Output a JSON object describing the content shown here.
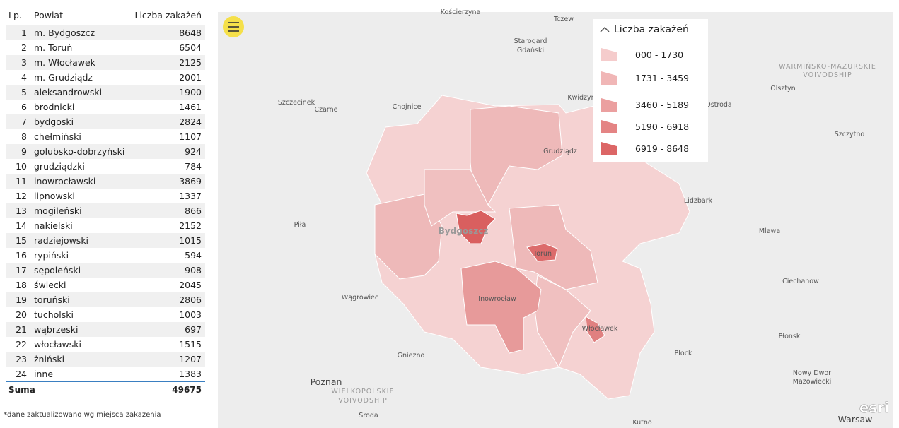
{
  "table": {
    "headers": [
      "Lp.",
      "Powiat",
      "Liczba zakażeń"
    ],
    "rows": [
      [
        1,
        "m. Bydgoszcz",
        8648
      ],
      [
        2,
        "m. Toruń",
        6504
      ],
      [
        3,
        "m. Włocławek",
        2125
      ],
      [
        4,
        "m. Grudziądz",
        2001
      ],
      [
        5,
        "aleksandrowski",
        1900
      ],
      [
        6,
        "brodnicki",
        1461
      ],
      [
        7,
        "bydgoski",
        2824
      ],
      [
        8,
        "chełmiński",
        1107
      ],
      [
        9,
        "golubsko-dobrzyński",
        924
      ],
      [
        10,
        "grudziądzki",
        784
      ],
      [
        11,
        "inowrocławski",
        3869
      ],
      [
        12,
        "lipnowski",
        1337
      ],
      [
        13,
        "mogileński",
        866
      ],
      [
        14,
        "nakielski",
        2152
      ],
      [
        15,
        "radziejowski",
        1015
      ],
      [
        16,
        "rypiński",
        594
      ],
      [
        17,
        "sępoleński",
        908
      ],
      [
        18,
        "świecki",
        2045
      ],
      [
        19,
        "toruński",
        2806
      ],
      [
        20,
        "tucholski",
        1003
      ],
      [
        21,
        "wąbrzeski",
        697
      ],
      [
        22,
        "włocławski",
        1515
      ],
      [
        23,
        "żniński",
        1207
      ],
      [
        24,
        "inne",
        1383
      ]
    ],
    "footer": {
      "label": "Suma",
      "value": 49675
    }
  },
  "note": "*dane zaktualizowano wg miejsca zakażenia",
  "legend": {
    "title": "Liczba zakażeń",
    "items": [
      "000 - 1730",
      "1731 - 3459",
      "3460 - 5189",
      "5190 - 6918",
      "6919 - 8648"
    ]
  },
  "map": {
    "places": [
      "Kościerzyna",
      "Tczew",
      "Starogard",
      "Gdański",
      "WARMIŃSKO-MAZURSKIE",
      "VOIVODSHIP",
      "Olsztyn",
      "Szczecinek",
      "Czarne",
      "Chojnice",
      "Kwidzyn",
      "Ostroda",
      "Grudziądz",
      "Szczytno",
      "Lidzbark",
      "Piła",
      "Bydgoszcz",
      "Mława",
      "Toruń",
      "Wągrowiec",
      "Inowrocław",
      "Ciechanow",
      "Włocławek",
      "Płonsk",
      "Gniezno",
      "Plock",
      "Nowy Dwor",
      "Mazowiecki",
      "Poznan",
      "WIELKOPOLSKIE",
      "VOIVODSHIP",
      "Sroda",
      "Warsaw",
      "Kutno"
    ],
    "attribution": "esri"
  }
}
